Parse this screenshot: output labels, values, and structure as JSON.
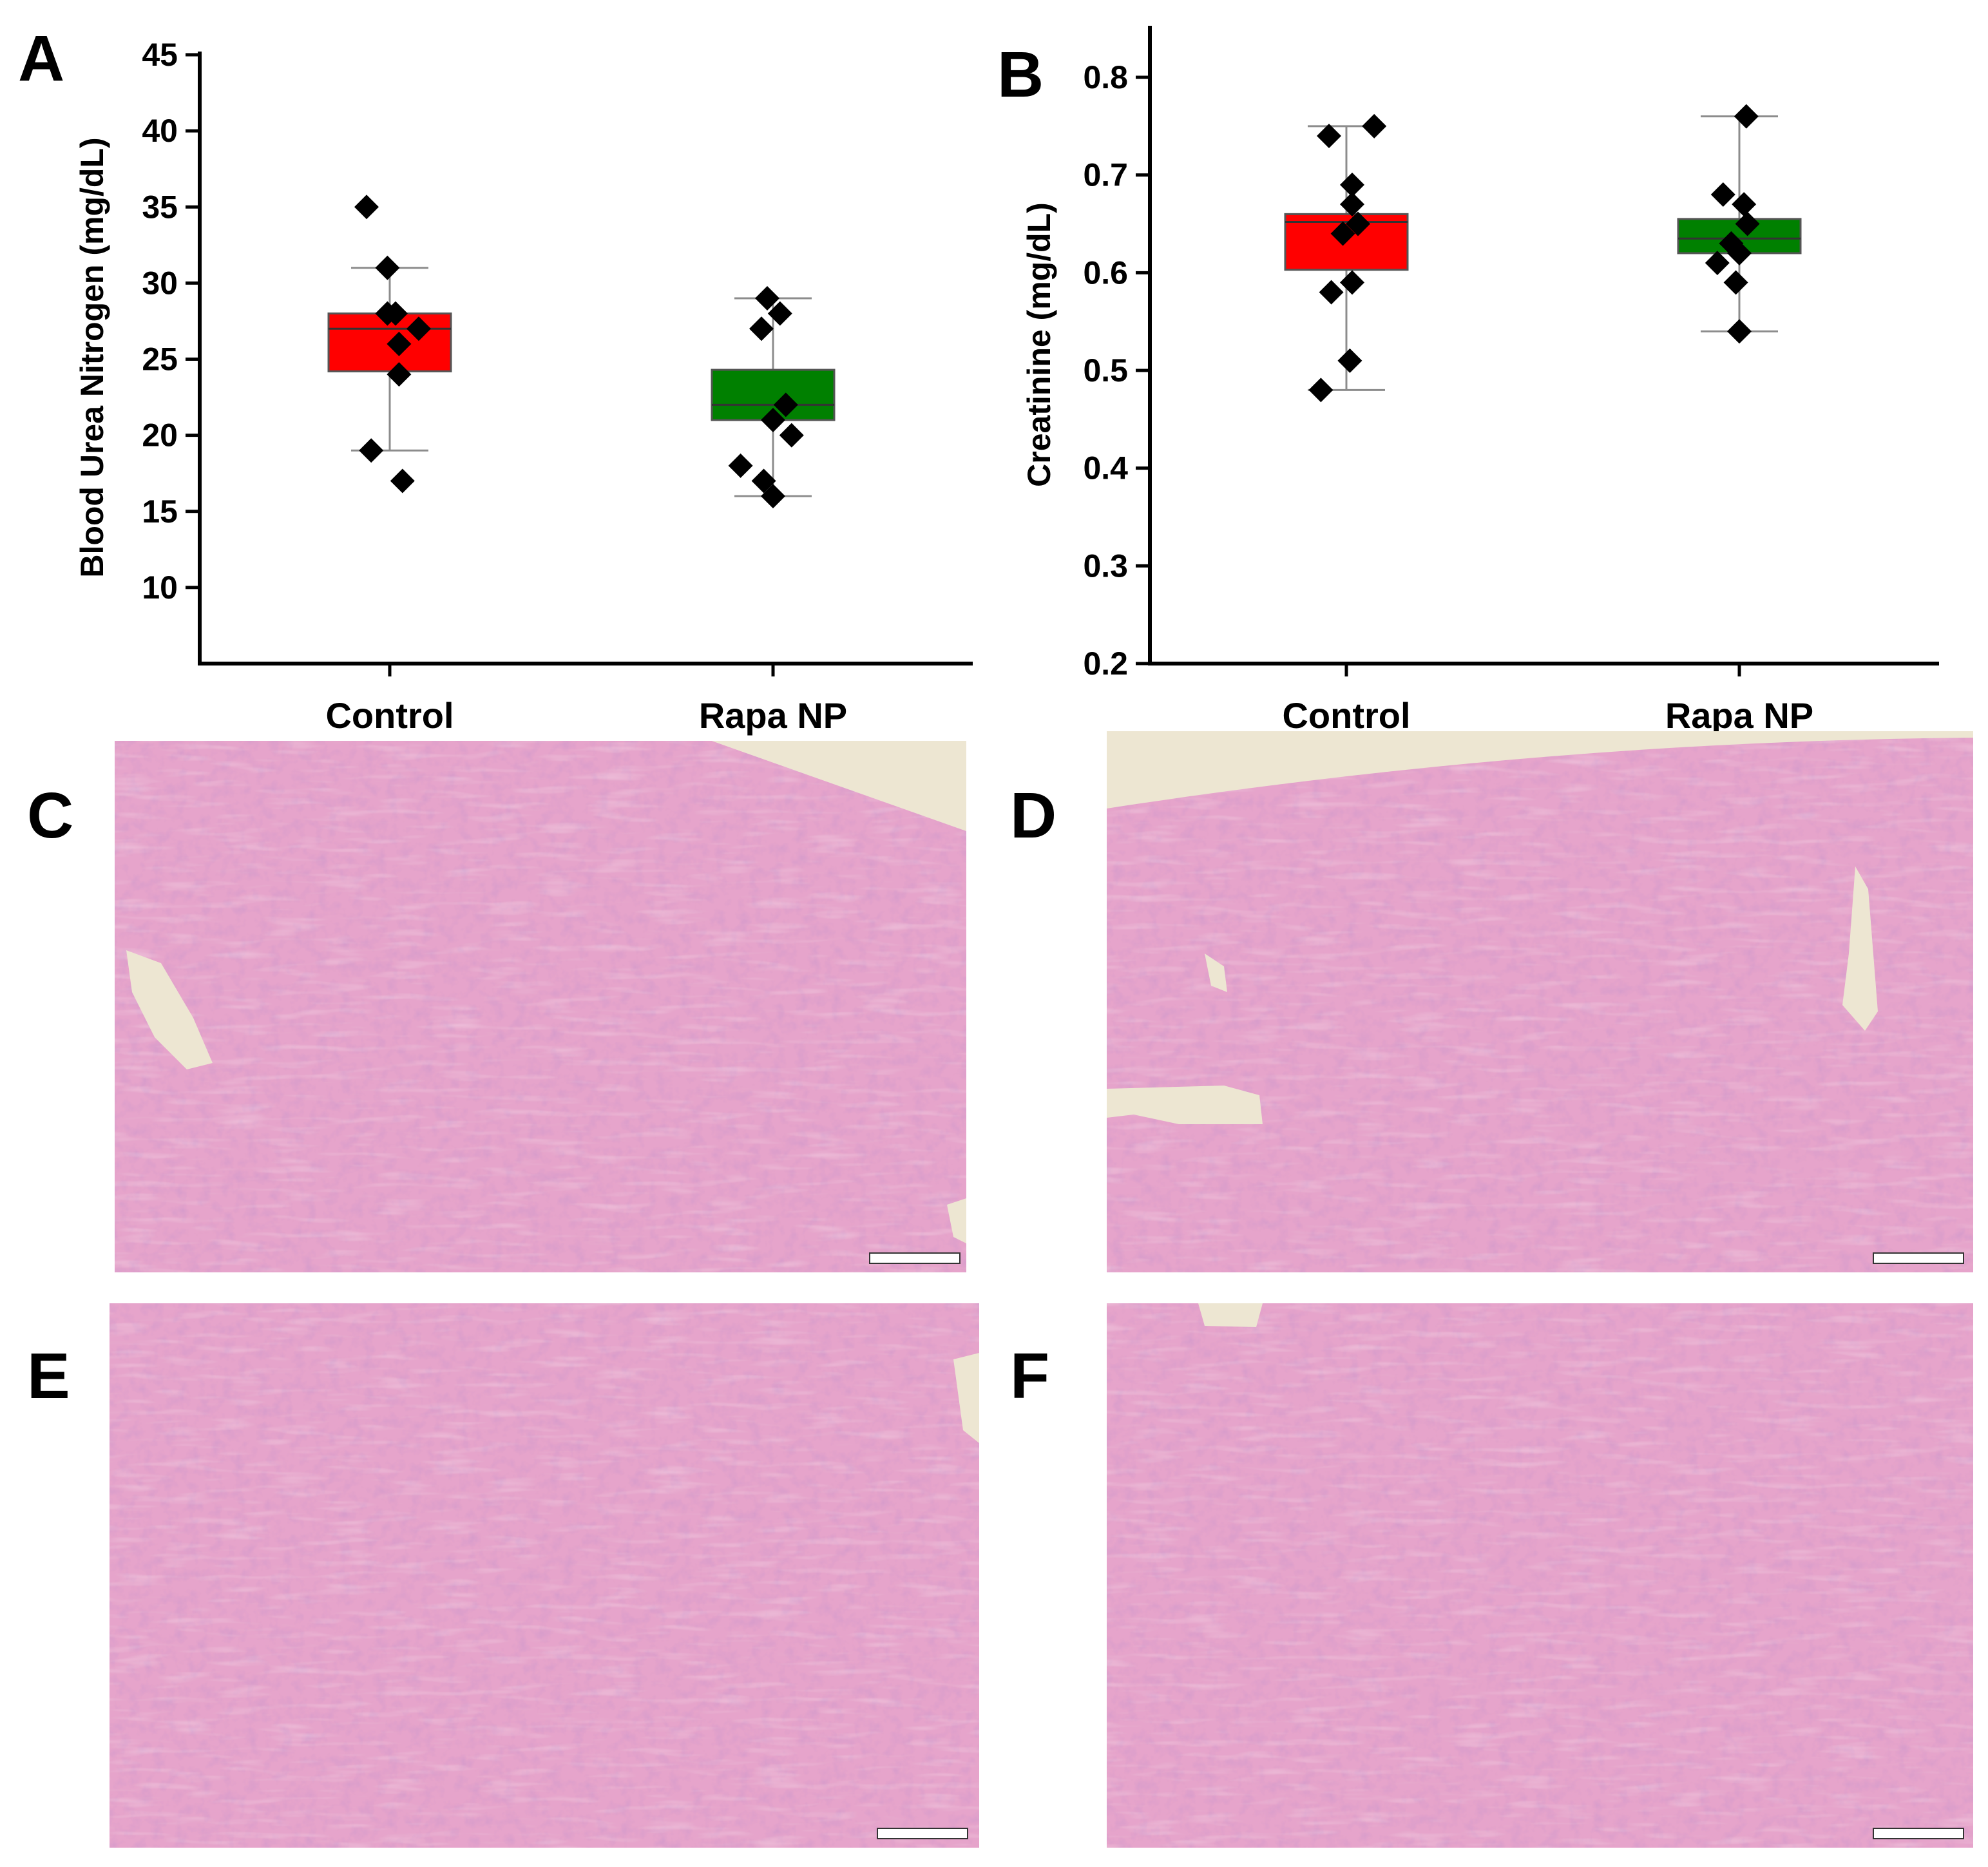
{
  "panels": [
    {
      "letter": "A"
    },
    {
      "letter": "B"
    },
    {
      "letter": "C"
    },
    {
      "letter": "D"
    },
    {
      "letter": "E"
    },
    {
      "letter": "F"
    }
  ],
  "colors": {
    "control_box": "#ff0000",
    "rapa_box": "#008000",
    "points": "#000000",
    "whisker": "#8c8c8c",
    "tissue_base": "#e8a6cc",
    "tissue_tubule": "#f1bcd8",
    "tissue_nuclei": "#8e4b9a",
    "background_slide": "#ede6d2"
  },
  "chart_data": [
    {
      "id": "A",
      "type": "box",
      "ylabel": "Blood Urea Nitrogen (mg/dL)",
      "ylim": [
        5,
        45
      ],
      "yticks": [
        "10",
        "15",
        "20",
        "25",
        "30",
        "35",
        "40",
        "45"
      ],
      "ytick_values": [
        10,
        15,
        20,
        25,
        30,
        35,
        40,
        45
      ],
      "categories": [
        "Control",
        "Rapa NP"
      ],
      "series": [
        {
          "category": "Control",
          "color": "#ff0000",
          "min": 19,
          "q1": 24.2,
          "median": 27,
          "q3": 28,
          "max": 31,
          "points": [
            35,
            31,
            28,
            28,
            27,
            26,
            24,
            19,
            17
          ],
          "jitter": [
            -0.2,
            -0.02,
            -0.02,
            0.05,
            0.25,
            0.08,
            0.08,
            -0.16,
            0.11
          ]
        },
        {
          "category": "Rapa NP",
          "color": "#008000",
          "min": 16,
          "q1": 21,
          "median": 22,
          "q3": 24.3,
          "max": 29,
          "points": [
            29,
            28,
            27,
            22,
            21,
            20,
            18,
            17,
            16
          ],
          "jitter": [
            -0.05,
            0.06,
            -0.1,
            0.11,
            0.0,
            0.16,
            -0.28,
            -0.08,
            0.0
          ]
        }
      ]
    },
    {
      "id": "B",
      "type": "box",
      "ylabel": "Creatinine (mg/dL)",
      "ylim": [
        0.2,
        0.85
      ],
      "yticks": [
        "0.2",
        "0.3",
        "0.4",
        "0.5",
        "0.6",
        "0.7",
        "0.8"
      ],
      "ytick_values": [
        0.2,
        0.3,
        0.4,
        0.5,
        0.6,
        0.7,
        0.8
      ],
      "categories": [
        "Control",
        "Rapa NP"
      ],
      "series": [
        {
          "category": "Control",
          "color": "#ff0000",
          "min": 0.48,
          "q1": 0.603,
          "median": 0.652,
          "q3": 0.66,
          "max": 0.75,
          "points": [
            0.75,
            0.74,
            0.69,
            0.67,
            0.65,
            0.64,
            0.59,
            0.58,
            0.51,
            0.48
          ],
          "jitter": [
            0.24,
            -0.15,
            0.05,
            0.05,
            0.1,
            -0.03,
            0.05,
            -0.13,
            0.03,
            -0.22
          ]
        },
        {
          "category": "Rapa NP",
          "color": "#008000",
          "min": 0.54,
          "q1": 0.62,
          "median": 0.635,
          "q3": 0.655,
          "max": 0.76,
          "points": [
            0.76,
            0.68,
            0.67,
            0.65,
            0.63,
            0.62,
            0.61,
            0.59,
            0.54
          ],
          "jitter": [
            0.06,
            -0.14,
            0.04,
            0.07,
            -0.07,
            0.0,
            -0.19,
            -0.03,
            0.0
          ]
        }
      ]
    }
  ]
}
